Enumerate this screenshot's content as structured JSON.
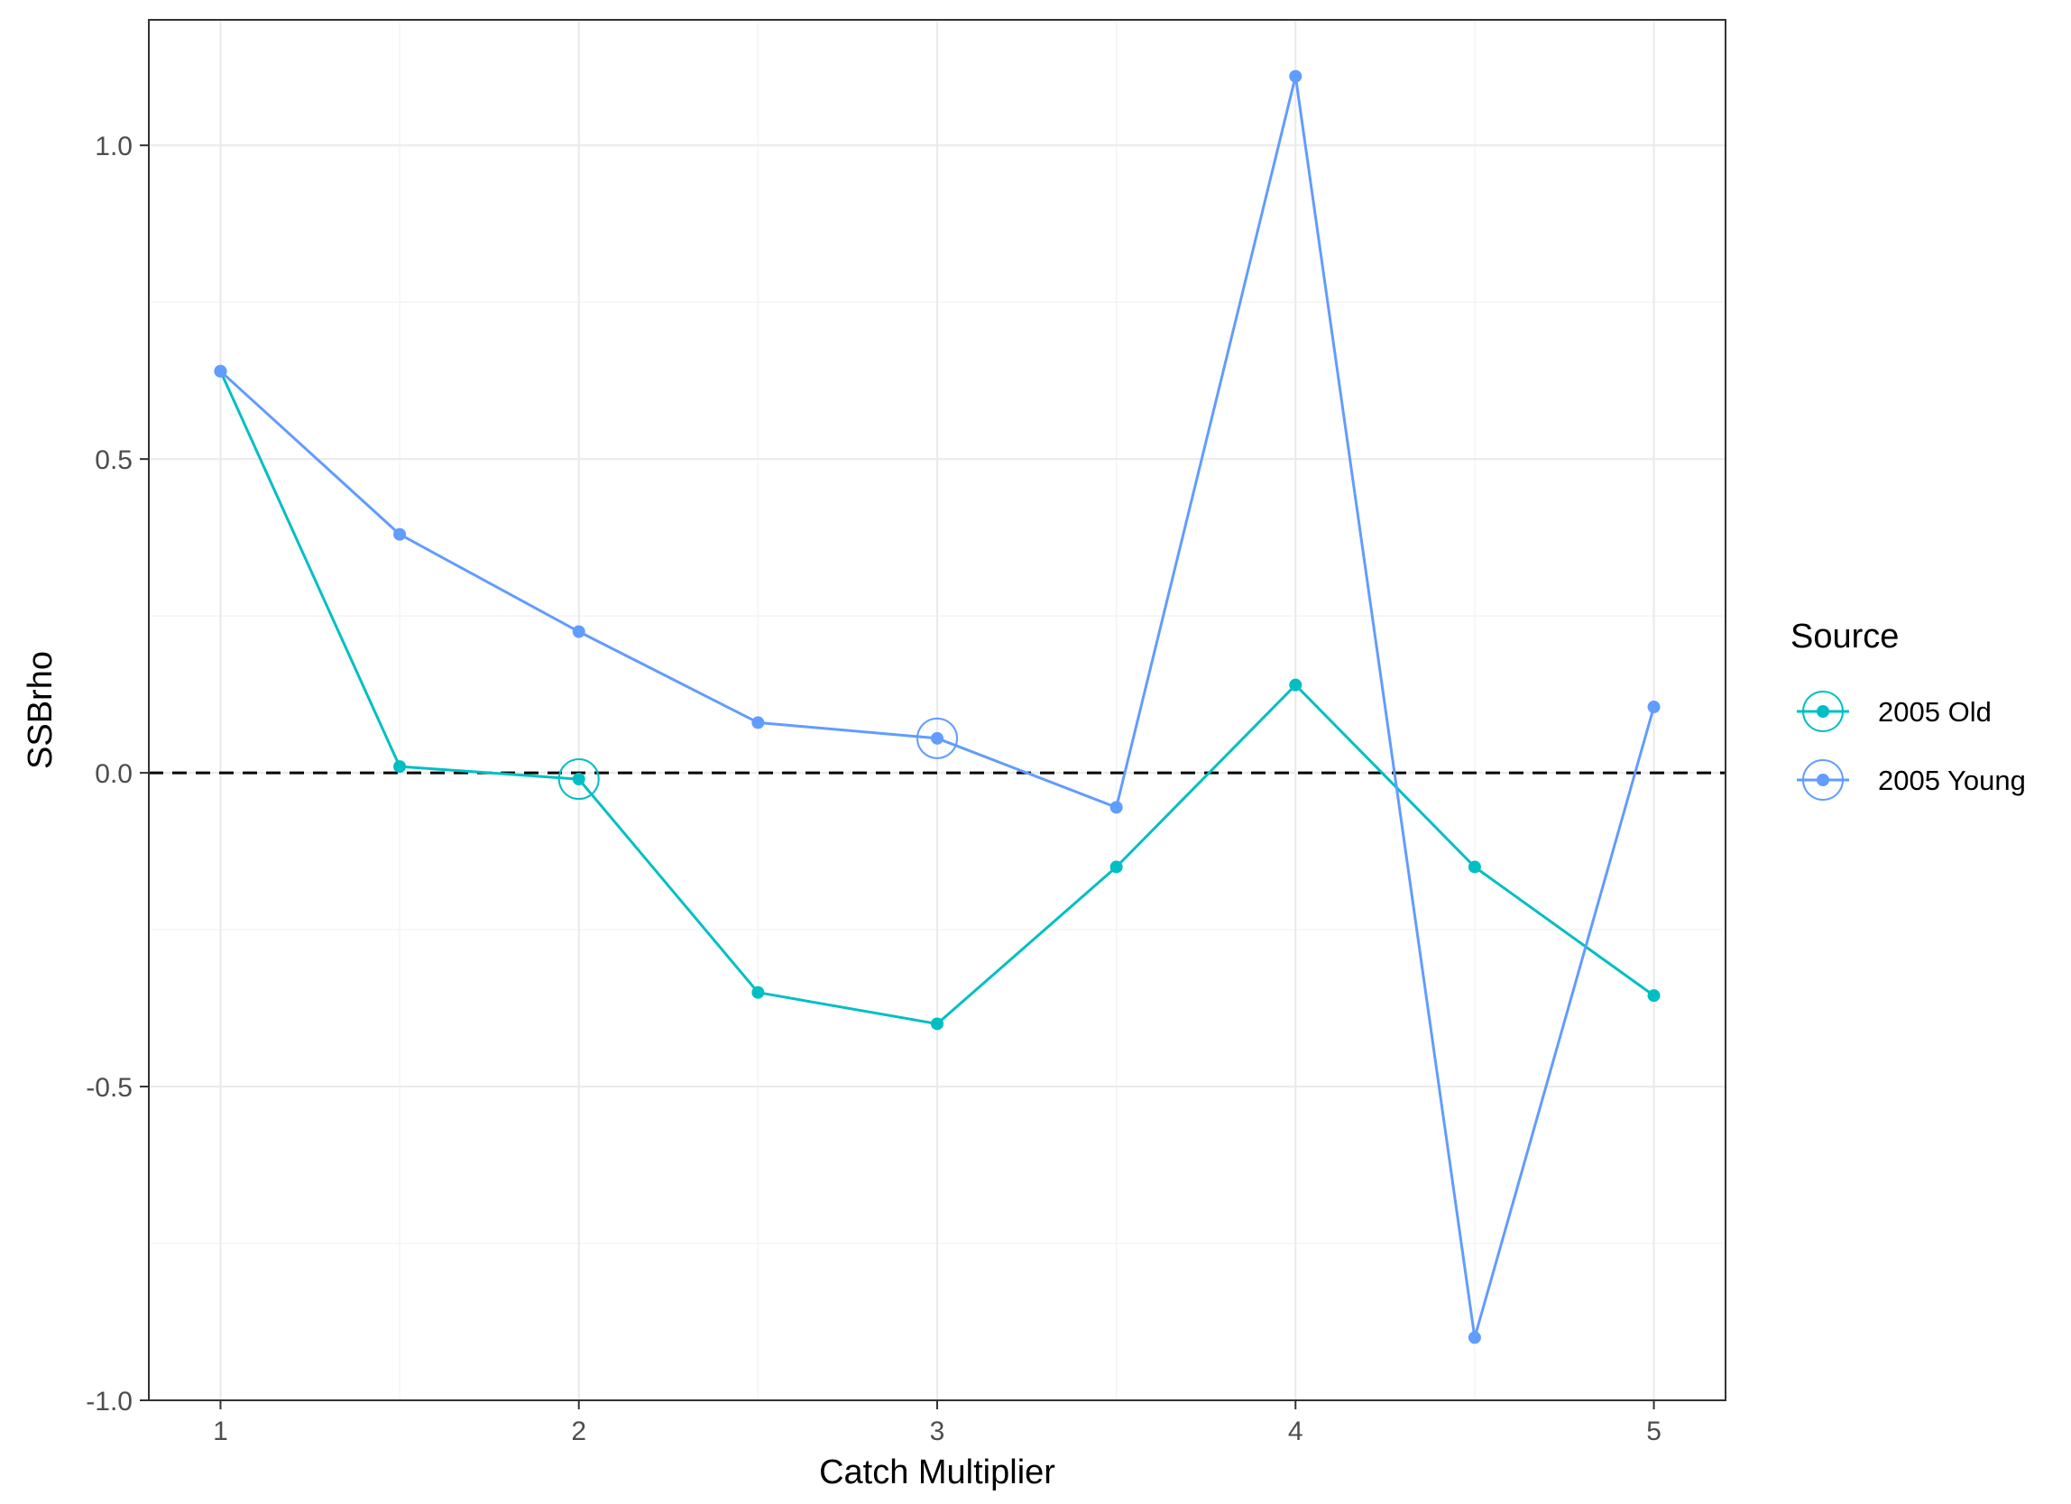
{
  "chart_data": {
    "type": "line",
    "xlabel": "Catch Multiplier",
    "ylabel": "SSBrho",
    "xlim": [
      0.8,
      5.2
    ],
    "ylim": [
      -1.0,
      1.2
    ],
    "x_ticks": [
      1,
      2,
      3,
      4,
      5
    ],
    "x_tick_labels": [
      "1",
      "2",
      "3",
      "4",
      "5"
    ],
    "y_ticks": [
      -1.0,
      -0.5,
      0.0,
      0.5,
      1.0
    ],
    "y_tick_labels": [
      "-1.0",
      "-0.5",
      "0.0",
      "0.5",
      "1.0"
    ],
    "grid": true,
    "reference_line": {
      "y": 0,
      "style": "dashed",
      "color": "#000000"
    },
    "legend": {
      "title": "Source",
      "position": "right"
    },
    "series": [
      {
        "name": "2005 Old",
        "color": "#00BFC4",
        "x": [
          1,
          1.5,
          2,
          2.5,
          3,
          3.5,
          4,
          4.5,
          5
        ],
        "y": [
          0.64,
          0.01,
          -0.01,
          -0.35,
          -0.4,
          -0.15,
          0.14,
          -0.15,
          -0.355
        ],
        "highlight_x": [
          2
        ]
      },
      {
        "name": "2005 Young",
        "color": "#619CFF",
        "x": [
          1,
          1.5,
          2,
          2.5,
          3,
          3.5,
          4,
          4.5,
          5
        ],
        "y": [
          0.64,
          0.38,
          0.225,
          0.08,
          0.055,
          -0.055,
          1.11,
          -0.9,
          0.105
        ],
        "highlight_x": [
          3
        ]
      }
    ]
  }
}
